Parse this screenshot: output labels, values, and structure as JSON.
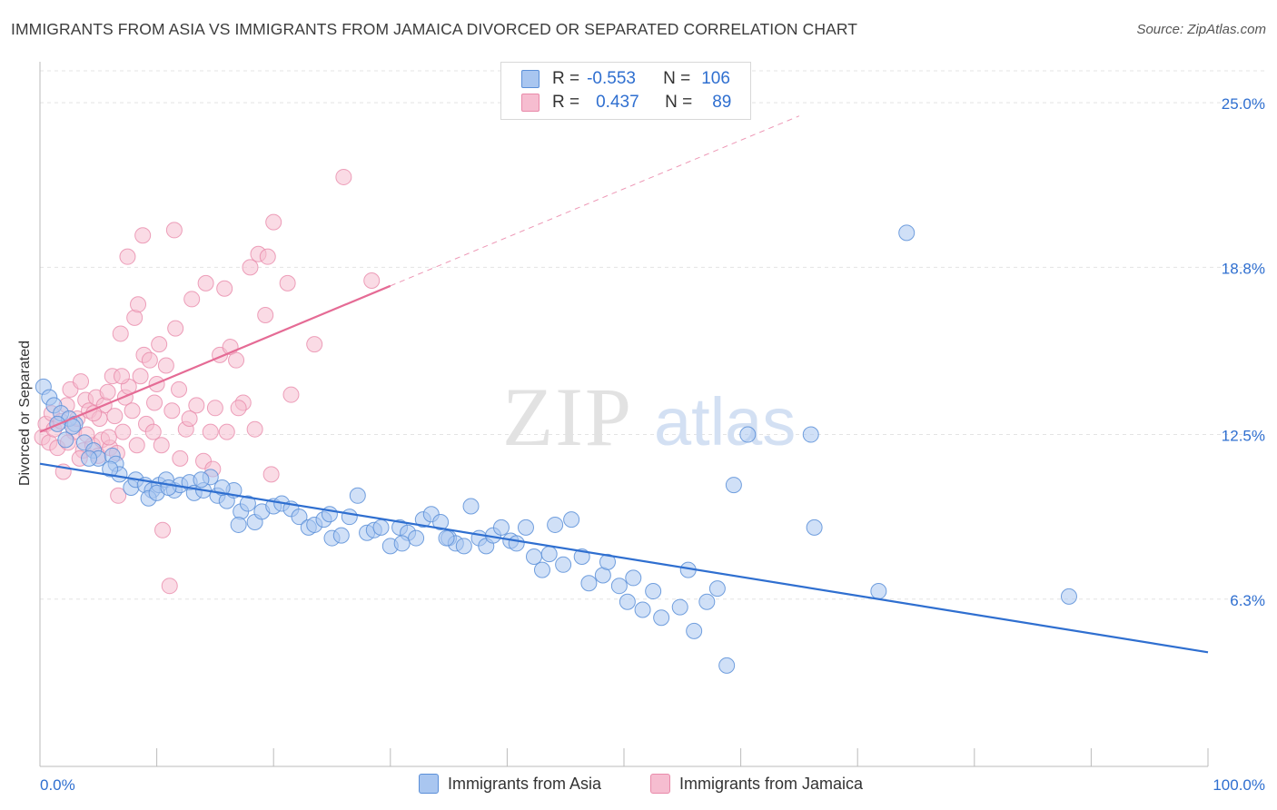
{
  "header": {
    "title": "IMMIGRANTS FROM ASIA VS IMMIGRANTS FROM JAMAICA DIVORCED OR SEPARATED CORRELATION CHART",
    "source": "Source: ZipAtlas.com"
  },
  "watermark": {
    "zip": "ZIP",
    "atlas": "atlas"
  },
  "legend": {
    "rows": [
      {
        "r_label": "R =",
        "r_value": "-0.553",
        "n_label": "N =",
        "n_value": "106"
      },
      {
        "r_label": "R =",
        "r_value": "0.437",
        "n_label": "N =",
        "n_value": "89"
      }
    ]
  },
  "bottom_legend": {
    "asia": "Immigrants from Asia",
    "jamaica": "Immigrants from Jamaica"
  },
  "colors": {
    "asia_fill": "#a9c6f0",
    "asia_stroke": "#5b8fd8",
    "asia_line": "#2f6fd0",
    "jamaica_fill": "#f6bdd0",
    "jamaica_stroke": "#e98aaa",
    "jamaica_line": "#e56b95",
    "tick_label": "#2f6fd0"
  },
  "chart_data": {
    "type": "scatter",
    "title": "IMMIGRANTS FROM ASIA VS IMMIGRANTS FROM JAMAICA DIVORCED OR SEPARATED CORRELATION CHART",
    "xlabel": "",
    "ylabel": "Divorced or Separated",
    "xlim": [
      0,
      100
    ],
    "ylim": [
      0,
      26.2
    ],
    "x_tick_labels": [
      "0.0%",
      "100.0%"
    ],
    "y_ticks": [
      6.3,
      12.5,
      18.8,
      25.0
    ],
    "y_tick_labels": [
      "6.3%",
      "12.5%",
      "18.8%",
      "25.0%"
    ],
    "grid": true,
    "legend_position": "top-center",
    "series": [
      {
        "name": "Immigrants from Asia",
        "r": -0.553,
        "n": 106,
        "trend": {
          "x": [
            0,
            100
          ],
          "y": [
            11.4,
            4.3
          ]
        },
        "points": [
          [
            0.3,
            14.3
          ],
          [
            0.8,
            13.9
          ],
          [
            1.2,
            13.6
          ],
          [
            1.8,
            13.3
          ],
          [
            2.5,
            13.1
          ],
          [
            3.0,
            12.9
          ],
          [
            2.2,
            12.3
          ],
          [
            3.8,
            12.2
          ],
          [
            4.6,
            11.9
          ],
          [
            5.0,
            11.6
          ],
          [
            6.2,
            11.7
          ],
          [
            6.5,
            11.4
          ],
          [
            6.8,
            11.0
          ],
          [
            7.8,
            10.5
          ],
          [
            8.2,
            10.8
          ],
          [
            9.0,
            10.6
          ],
          [
            9.6,
            10.4
          ],
          [
            10.2,
            10.6
          ],
          [
            10.8,
            10.8
          ],
          [
            11.5,
            10.4
          ],
          [
            12.0,
            10.6
          ],
          [
            12.8,
            10.7
          ],
          [
            13.2,
            10.3
          ],
          [
            14.0,
            10.4
          ],
          [
            14.6,
            10.9
          ],
          [
            15.2,
            10.2
          ],
          [
            16.0,
            10.0
          ],
          [
            16.6,
            10.4
          ],
          [
            17.2,
            9.6
          ],
          [
            17.8,
            9.9
          ],
          [
            18.4,
            9.2
          ],
          [
            19.0,
            9.6
          ],
          [
            20.0,
            9.8
          ],
          [
            20.7,
            9.9
          ],
          [
            21.5,
            9.7
          ],
          [
            22.2,
            9.4
          ],
          [
            23.0,
            9.0
          ],
          [
            23.5,
            9.1
          ],
          [
            24.3,
            9.3
          ],
          [
            25.0,
            8.6
          ],
          [
            25.8,
            8.7
          ],
          [
            26.5,
            9.4
          ],
          [
            27.2,
            10.2
          ],
          [
            28.0,
            8.8
          ],
          [
            28.6,
            8.9
          ],
          [
            29.2,
            9.0
          ],
          [
            30.0,
            8.3
          ],
          [
            30.8,
            9.0
          ],
          [
            31.5,
            8.8
          ],
          [
            32.2,
            8.6
          ],
          [
            32.8,
            9.3
          ],
          [
            33.5,
            9.5
          ],
          [
            34.3,
            9.2
          ],
          [
            35.0,
            8.6
          ],
          [
            35.6,
            8.4
          ],
          [
            36.3,
            8.3
          ],
          [
            36.9,
            9.8
          ],
          [
            37.6,
            8.6
          ],
          [
            38.2,
            8.3
          ],
          [
            38.8,
            8.7
          ],
          [
            39.5,
            9.0
          ],
          [
            40.3,
            8.5
          ],
          [
            40.8,
            8.4
          ],
          [
            41.6,
            9.0
          ],
          [
            42.3,
            7.9
          ],
          [
            43.0,
            7.4
          ],
          [
            43.6,
            8.0
          ],
          [
            44.1,
            9.1
          ],
          [
            44.8,
            7.6
          ],
          [
            45.5,
            9.3
          ],
          [
            46.4,
            7.9
          ],
          [
            47.0,
            6.9
          ],
          [
            48.2,
            7.2
          ],
          [
            48.6,
            7.7
          ],
          [
            49.6,
            6.8
          ],
          [
            50.3,
            6.2
          ],
          [
            50.8,
            7.1
          ],
          [
            51.6,
            5.9
          ],
          [
            52.5,
            6.6
          ],
          [
            53.2,
            5.6
          ],
          [
            54.8,
            6.0
          ],
          [
            55.5,
            7.4
          ],
          [
            56.0,
            5.1
          ],
          [
            57.1,
            6.2
          ],
          [
            58.0,
            6.7
          ],
          [
            58.8,
            3.8
          ],
          [
            59.4,
            10.6
          ],
          [
            60.6,
            12.5
          ],
          [
            66.0,
            12.5
          ],
          [
            66.3,
            9.0
          ],
          [
            71.8,
            6.6
          ],
          [
            74.2,
            20.1
          ],
          [
            88.1,
            6.4
          ],
          [
            1.5,
            12.9
          ],
          [
            2.8,
            12.8
          ],
          [
            4.2,
            11.6
          ],
          [
            6.0,
            11.2
          ],
          [
            9.3,
            10.1
          ],
          [
            10.0,
            10.3
          ],
          [
            11.0,
            10.5
          ],
          [
            13.8,
            10.8
          ],
          [
            15.6,
            10.5
          ],
          [
            17.0,
            9.1
          ],
          [
            24.8,
            9.5
          ],
          [
            31.0,
            8.4
          ],
          [
            34.8,
            8.6
          ]
        ]
      },
      {
        "name": "Immigrants from Jamaica",
        "r": 0.437,
        "n": 89,
        "trend": {
          "x": [
            0,
            30
          ],
          "y": [
            12.6,
            18.1
          ]
        },
        "trend_extension": {
          "x": [
            30,
            65
          ],
          "y": [
            18.1,
            24.5
          ]
        },
        "points": [
          [
            0.2,
            12.4
          ],
          [
            0.5,
            12.9
          ],
          [
            0.8,
            12.2
          ],
          [
            1.0,
            13.3
          ],
          [
            1.2,
            12.7
          ],
          [
            1.5,
            12.0
          ],
          [
            1.8,
            13.0
          ],
          [
            2.0,
            11.1
          ],
          [
            2.3,
            13.6
          ],
          [
            2.6,
            14.2
          ],
          [
            2.9,
            12.6
          ],
          [
            3.2,
            13.1
          ],
          [
            3.5,
            14.5
          ],
          [
            3.7,
            11.9
          ],
          [
            3.9,
            13.8
          ],
          [
            4.2,
            13.4
          ],
          [
            4.5,
            12.1
          ],
          [
            4.8,
            13.9
          ],
          [
            5.0,
            11.7
          ],
          [
            5.3,
            12.3
          ],
          [
            5.5,
            13.6
          ],
          [
            5.8,
            14.1
          ],
          [
            6.0,
            12.0
          ],
          [
            6.2,
            14.7
          ],
          [
            6.4,
            13.2
          ],
          [
            6.6,
            11.8
          ],
          [
            6.9,
            16.3
          ],
          [
            7.1,
            12.6
          ],
          [
            7.3,
            13.9
          ],
          [
            7.6,
            14.3
          ],
          [
            7.9,
            13.4
          ],
          [
            8.1,
            16.9
          ],
          [
            8.4,
            17.4
          ],
          [
            8.6,
            14.7
          ],
          [
            8.9,
            15.5
          ],
          [
            9.1,
            12.9
          ],
          [
            9.4,
            15.3
          ],
          [
            9.7,
            12.6
          ],
          [
            10.0,
            14.4
          ],
          [
            10.2,
            15.9
          ],
          [
            10.5,
            8.9
          ],
          [
            10.8,
            15.1
          ],
          [
            11.1,
            6.8
          ],
          [
            11.3,
            13.4
          ],
          [
            11.6,
            16.5
          ],
          [
            12.0,
            11.6
          ],
          [
            12.5,
            12.7
          ],
          [
            13.0,
            17.6
          ],
          [
            13.4,
            13.6
          ],
          [
            14.0,
            11.5
          ],
          [
            14.6,
            12.6
          ],
          [
            15.0,
            13.5
          ],
          [
            15.4,
            15.5
          ],
          [
            15.8,
            18.0
          ],
          [
            16.3,
            15.8
          ],
          [
            16.8,
            15.3
          ],
          [
            17.4,
            13.7
          ],
          [
            18.0,
            18.8
          ],
          [
            18.7,
            19.3
          ],
          [
            19.3,
            17.0
          ],
          [
            20.0,
            20.5
          ],
          [
            21.2,
            18.2
          ],
          [
            23.5,
            15.9
          ],
          [
            26.0,
            22.2
          ],
          [
            28.4,
            18.3
          ],
          [
            7.5,
            19.2
          ],
          [
            8.8,
            20.0
          ],
          [
            11.5,
            20.2
          ],
          [
            14.2,
            18.2
          ],
          [
            19.5,
            19.2
          ],
          [
            4.0,
            12.5
          ],
          [
            5.1,
            13.1
          ],
          [
            6.7,
            10.2
          ],
          [
            8.3,
            12.1
          ],
          [
            9.8,
            13.7
          ],
          [
            10.4,
            12.1
          ],
          [
            11.9,
            14.2
          ],
          [
            12.8,
            13.1
          ],
          [
            14.8,
            11.2
          ],
          [
            16.0,
            12.6
          ],
          [
            17.0,
            13.5
          ],
          [
            18.4,
            12.7
          ],
          [
            19.8,
            11.0
          ],
          [
            21.5,
            14.0
          ],
          [
            2.4,
            12.2
          ],
          [
            3.4,
            11.6
          ],
          [
            4.6,
            13.3
          ],
          [
            5.9,
            12.4
          ],
          [
            7.0,
            14.7
          ]
        ]
      }
    ]
  }
}
